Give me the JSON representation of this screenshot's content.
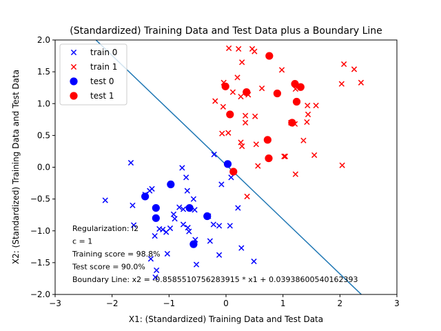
{
  "chart_data": {
    "type": "scatter",
    "title": "(Standardized) Training Data and Test Data plus a Boundary Line",
    "xlabel": "X1: (Standardized) Training Data and Test Data",
    "ylabel": "X2: (Standardized) Training Data and Test Data",
    "xlim": [
      -3,
      3
    ],
    "ylim": [
      -2,
      2
    ],
    "xticks": [
      -3,
      -2,
      -1,
      0,
      1,
      2,
      3
    ],
    "yticks": [
      -2.0,
      -1.5,
      -1.0,
      -0.5,
      0.0,
      0.5,
      1.0,
      1.5,
      2.0
    ],
    "ytick_labels": [
      "−2.0",
      "−1.5",
      "−1.0",
      "−0.5",
      "0.0",
      "0.5",
      "1.0",
      "1.5",
      "2.0"
    ],
    "xtick_labels": [
      "−3",
      "−2",
      "−1",
      "0",
      "1",
      "2",
      "3"
    ],
    "grid": false,
    "legend_position": "top-left",
    "series": [
      {
        "name": "train 0",
        "marker": "x",
        "color": "#0000ff",
        "points": [
          [
            -2.12,
            -0.52
          ],
          [
            -1.67,
            0.07
          ],
          [
            -1.64,
            -0.6
          ],
          [
            -1.62,
            -0.91
          ],
          [
            -1.42,
            -0.43
          ],
          [
            -1.34,
            -0.37
          ],
          [
            -1.3,
            -0.34
          ],
          [
            -1.32,
            -1.44
          ],
          [
            -1.25,
            -1.08
          ],
          [
            -1.22,
            -1.62
          ],
          [
            -1.24,
            -1.73
          ],
          [
            -1.17,
            -0.97
          ],
          [
            -1.11,
            -0.98
          ],
          [
            -1.05,
            -1.02
          ],
          [
            -1.03,
            -1.36
          ],
          [
            -0.98,
            -0.96
          ],
          [
            -0.92,
            -0.74
          ],
          [
            -0.9,
            -0.81
          ],
          [
            -0.82,
            -0.63
          ],
          [
            -0.77,
            -0.01
          ],
          [
            -0.75,
            -0.9
          ],
          [
            -0.75,
            -0.66
          ],
          [
            -0.7,
            -0.16
          ],
          [
            -0.68,
            -0.37
          ],
          [
            -0.67,
            -0.95
          ],
          [
            -0.65,
            -1.01
          ],
          [
            -0.57,
            -0.5
          ],
          [
            -0.55,
            -0.67
          ],
          [
            -0.54,
            -1.14
          ],
          [
            -0.52,
            -1.53
          ],
          [
            -0.31,
            -0.77
          ],
          [
            -0.28,
            -1.16
          ],
          [
            -0.22,
            -0.9
          ],
          [
            -0.21,
            0.2
          ],
          [
            -0.12,
            -0.92
          ],
          [
            -0.12,
            -1.38
          ],
          [
            -0.08,
            -0.27
          ],
          [
            0.07,
            -0.92
          ],
          [
            0.09,
            -0.16
          ],
          [
            0.21,
            -0.64
          ],
          [
            0.27,
            -1.27
          ],
          [
            0.49,
            -1.48
          ]
        ]
      },
      {
        "name": "train 1",
        "marker": "x",
        "color": "#ff0000",
        "points": [
          [
            0.05,
            1.87
          ],
          [
            0.22,
            1.86
          ],
          [
            0.46,
            1.86
          ],
          [
            0.5,
            1.82
          ],
          [
            0.2,
            1.41
          ],
          [
            0.28,
            1.65
          ],
          [
            0.98,
            1.53
          ],
          [
            2.07,
            1.62
          ],
          [
            2.25,
            1.54
          ],
          [
            2.37,
            1.33
          ],
          [
            2.03,
            1.31
          ],
          [
            -0.04,
            1.33
          ],
          [
            0.12,
            1.18
          ],
          [
            0.63,
            1.24
          ],
          [
            -0.19,
            1.04
          ],
          [
            -0.05,
            0.95
          ],
          [
            0.26,
            1.11
          ],
          [
            0.39,
            1.14
          ],
          [
            1.22,
            1.23
          ],
          [
            1.43,
            0.97
          ],
          [
            1.58,
            0.97
          ],
          [
            1.44,
            0.83
          ],
          [
            0.34,
            0.81
          ],
          [
            0.51,
            0.8
          ],
          [
            0.34,
            0.7
          ],
          [
            1.14,
            0.7
          ],
          [
            1.21,
            0.68
          ],
          [
            1.42,
            0.71
          ],
          [
            -0.07,
            0.53
          ],
          [
            0.04,
            0.54
          ],
          [
            0.26,
            0.39
          ],
          [
            0.28,
            0.33
          ],
          [
            0.53,
            0.36
          ],
          [
            1.36,
            0.42
          ],
          [
            1.02,
            0.17
          ],
          [
            1.04,
            0.17
          ],
          [
            1.55,
            0.19
          ],
          [
            0.56,
            0.02
          ],
          [
            2.04,
            0.03
          ],
          [
            1.22,
            -0.11
          ],
          [
            0.37,
            -0.46
          ]
        ]
      },
      {
        "name": "test 0",
        "marker": "o",
        "color": "#0000ff",
        "points": [
          [
            -1.42,
            -0.46
          ],
          [
            -1.23,
            -0.64
          ],
          [
            -1.23,
            -0.8
          ],
          [
            -0.97,
            -0.27
          ],
          [
            -0.64,
            -0.64
          ],
          [
            -0.57,
            -1.21
          ],
          [
            -0.33,
            -0.77
          ],
          [
            0.03,
            0.05
          ]
        ]
      },
      {
        "name": "test 1",
        "marker": "o",
        "color": "#ff0000",
        "points": [
          [
            0.76,
            1.75
          ],
          [
            -0.01,
            1.27
          ],
          [
            0.36,
            1.18
          ],
          [
            0.9,
            1.16
          ],
          [
            1.21,
            1.31
          ],
          [
            1.31,
            1.26
          ],
          [
            1.24,
            1.03
          ],
          [
            0.07,
            0.83
          ],
          [
            1.16,
            0.7
          ],
          [
            0.73,
            0.43
          ],
          [
            0.75,
            0.14
          ],
          [
            0.13,
            -0.07
          ]
        ]
      }
    ],
    "boundary_line": {
      "slope": -0.858551075628391,
      "intercept": 0.0393860054016239,
      "color": "#1f77b4"
    },
    "annotations": [
      "Regularization: l2",
      "c = 1",
      "Training score = 98.8%",
      "Test score = 90.0%",
      "Boundary Line: x2 = -0.858551075628391 5 * x1 + 0.03938600540162393"
    ],
    "annotation_lines": [
      "Regularization: l2",
      "c = 1",
      "Training score = 98.8%",
      "Test score = 90.0%",
      "Boundary Line: x2 = -0.8585510756283915 * x1 + 0.03938600540162393"
    ]
  }
}
